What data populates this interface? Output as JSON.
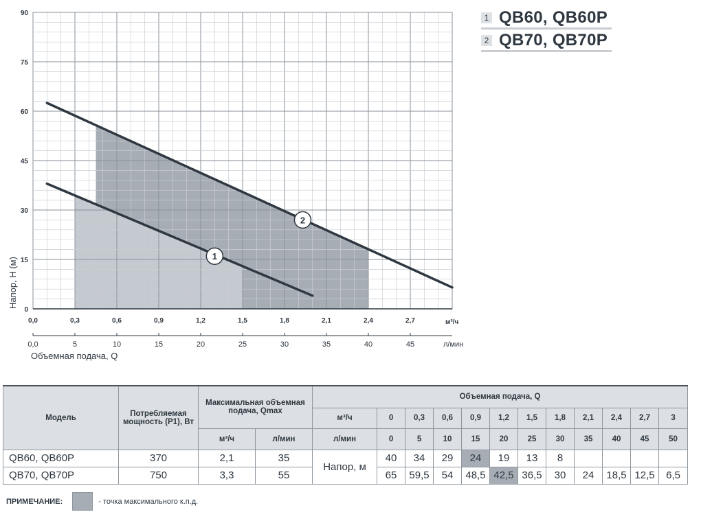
{
  "chart_data": {
    "type": "line",
    "x_unit": "м³/ч",
    "x_ticks": [
      "0,0",
      "0,3",
      "0,6",
      "0,9",
      "1,2",
      "1,5",
      "1,8",
      "2,1",
      "2,4",
      "2,7"
    ],
    "x_ticks_values": [
      0,
      0.3,
      0.6,
      0.9,
      1.2,
      1.5,
      1.8,
      2.1,
      2.4,
      2.7
    ],
    "x2_unit": "л/мин",
    "x2_ticks": [
      "0,0",
      "5",
      "10",
      "15",
      "20",
      "25",
      "30",
      "35",
      "40",
      "45"
    ],
    "xlabel": "Объемная подача, Q",
    "ylabel": "Напор, H (м)",
    "y_ticks": [
      "0",
      "15",
      "30",
      "45",
      "60",
      "75",
      "90"
    ],
    "y_ticks_values": [
      0,
      15,
      30,
      45,
      60,
      75,
      90
    ],
    "xlim": [
      0,
      3.0
    ],
    "ylim": [
      0,
      90
    ],
    "grid": true,
    "series": [
      {
        "name": "1",
        "color": "#2f3841",
        "x": [
          0.1,
          2.0
        ],
        "y": [
          38,
          4
        ],
        "work_zone": {
          "x": [
            0.3,
            1.5
          ],
          "color": "#c5cad0"
        }
      },
      {
        "name": "2",
        "color": "#2f3841",
        "x": [
          0.1,
          3.0
        ],
        "y": [
          62.5,
          6.5
        ],
        "work_zone": {
          "x": [
            0.45,
            2.4
          ],
          "color": "#a6adb4"
        }
      }
    ],
    "labels": [
      {
        "text": "1",
        "x": 1.3,
        "y": 16
      },
      {
        "text": "2",
        "x": 1.93,
        "y": 27
      }
    ]
  },
  "legend": [
    {
      "num": "1",
      "label": "QB60, QB60P"
    },
    {
      "num": "2",
      "label": "QB70, QB70P"
    }
  ],
  "table": {
    "model_header": "Модель",
    "power_header": "Потребляемая мощность (P1), Вт",
    "qmax_header": "Максимальная объемная подача, Qmax",
    "flow_header": "Объемная подача, Q",
    "unit_m3h": "м³/ч",
    "unit_lpm": "л/мин",
    "flow_m3h": [
      "0",
      "0,3",
      "0,6",
      "0,9",
      "1,2",
      "1,5",
      "1,8",
      "2,1",
      "2,4",
      "2,7",
      "3"
    ],
    "flow_lpm": [
      "0",
      "5",
      "10",
      "15",
      "20",
      "25",
      "30",
      "35",
      "40",
      "45",
      "50"
    ],
    "head_label": "Напор, м",
    "rows": [
      {
        "model": "QB60, QB60P",
        "power": "370",
        "qmax_m3h": "2,1",
        "qmax_lpm": "35",
        "heads": [
          "40",
          "34",
          "29",
          "24",
          "19",
          "13",
          "8",
          "",
          "",
          "",
          ""
        ]
      },
      {
        "model": "QB70, QB70P",
        "power": "750",
        "qmax_m3h": "3,3",
        "qmax_lpm": "55",
        "heads": [
          "65",
          "59,5",
          "54",
          "48,5",
          "42,5",
          "36,5",
          "30",
          "24",
          "18,5",
          "12,5",
          "6,5"
        ]
      }
    ]
  },
  "note": {
    "label": "ПРИМЕЧАНИЕ:",
    "text": "- точка максимального к.п.д."
  }
}
